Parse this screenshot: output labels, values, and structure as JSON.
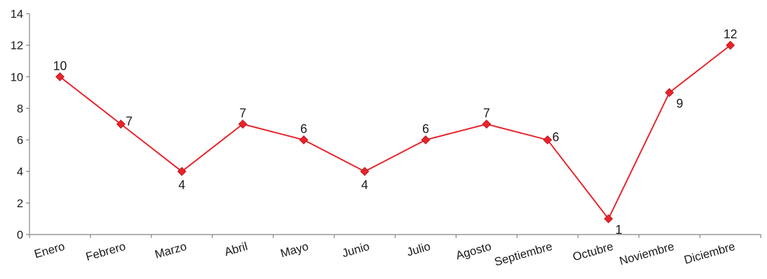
{
  "chart_data": {
    "type": "line",
    "categories": [
      "Enero",
      "Febrero",
      "Marzo",
      "Abril",
      "Mayo",
      "Junio",
      "Julio",
      "Agosto",
      "Septiembre",
      "Octubre",
      "Noviembre",
      "Diciembre"
    ],
    "series": [
      {
        "values": [
          10,
          7,
          4,
          7,
          6,
          4,
          6,
          7,
          6,
          1,
          9,
          12
        ]
      }
    ],
    "ylim": [
      0,
      14
    ],
    "yticks": [
      0,
      2,
      4,
      6,
      8,
      10,
      12,
      14
    ],
    "title": "",
    "xlabel": "",
    "ylabel": "",
    "grid": false,
    "line_color": "#e8232a",
    "marker": "diamond",
    "data_label_positions": [
      "above",
      "right",
      "below",
      "above",
      "above",
      "below",
      "above",
      "above",
      "right",
      "below-right",
      "below-right",
      "above"
    ]
  }
}
